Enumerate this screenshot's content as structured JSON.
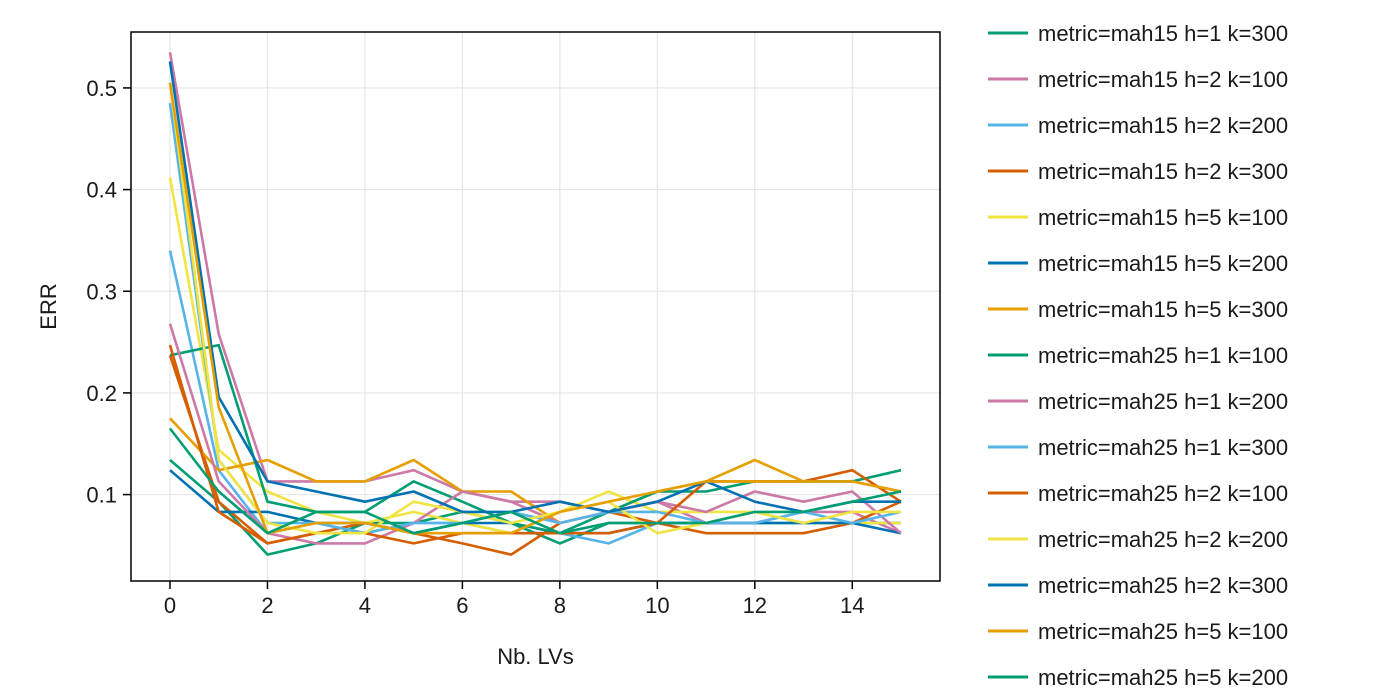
{
  "chart_data": {
    "type": "line",
    "title": "",
    "xlabel": "Nb. LVs",
    "ylabel": "ERR",
    "xlim": [
      -0.8,
      15.8
    ],
    "ylim": [
      0.015,
      0.555
    ],
    "xticks": [
      0,
      2,
      4,
      6,
      8,
      10,
      12,
      14
    ],
    "yticks": [
      0.1,
      0.2,
      0.3,
      0.4,
      0.5
    ],
    "xtick_labels": [
      "0",
      "2",
      "4",
      "6",
      "8",
      "10",
      "12",
      "14"
    ],
    "ytick_labels": [
      "0.1",
      "0.2",
      "0.3",
      "0.4",
      "0.5"
    ],
    "grid": true,
    "legend_position": "right",
    "x": [
      0,
      1,
      2,
      3,
      4,
      5,
      6,
      7,
      8,
      9,
      10,
      11,
      12,
      13,
      14,
      15
    ],
    "series": [
      {
        "name": "metric=mah15 h=1 k=300",
        "color": "#009e73",
        "values": [
          0.134,
          0.093,
          0.041,
          0.052,
          0.072,
          0.072,
          0.083,
          0.072,
          0.052,
          0.072,
          0.072,
          0.072,
          0.072,
          0.072,
          0.072,
          0.072
        ]
      },
      {
        "name": "metric=mah15 h=2 k=100",
        "color": "#cc79a7",
        "values": [
          0.535,
          0.258,
          0.113,
          0.113,
          0.113,
          0.124,
          0.103,
          0.093,
          0.093,
          0.083,
          0.093,
          0.072,
          0.072,
          0.083,
          0.083,
          0.062
        ]
      },
      {
        "name": "metric=mah15 h=2 k=200",
        "color": "#56b4e9",
        "values": [
          0.34,
          0.124,
          0.062,
          0.072,
          0.062,
          0.072,
          0.072,
          0.062,
          0.062,
          0.052,
          0.072,
          0.072,
          0.083,
          0.072,
          0.072,
          0.072
        ]
      },
      {
        "name": "metric=mah15 h=2 k=300",
        "color": "#d55e00",
        "values": [
          0.237,
          0.093,
          0.052,
          0.062,
          0.072,
          0.062,
          0.052,
          0.041,
          0.072,
          0.083,
          0.072,
          0.062,
          0.062,
          0.062,
          0.072,
          0.093
        ]
      },
      {
        "name": "metric=mah15 h=5 k=100",
        "color": "#f0e442",
        "values": [
          0.412,
          0.144,
          0.103,
          0.083,
          0.072,
          0.083,
          0.072,
          0.062,
          0.083,
          0.103,
          0.083,
          0.083,
          0.083,
          0.072,
          0.072,
          0.072
        ]
      },
      {
        "name": "metric=mah15 h=5 k=200",
        "color": "#0072b2",
        "values": [
          0.124,
          0.083,
          0.083,
          0.072,
          0.072,
          0.062,
          0.072,
          0.072,
          0.062,
          0.062,
          0.072,
          0.072,
          0.072,
          0.072,
          0.072,
          0.062
        ]
      },
      {
        "name": "metric=mah15 h=5 k=300",
        "color": "#e69f00",
        "values": [
          0.175,
          0.124,
          0.134,
          0.113,
          0.113,
          0.134,
          0.103,
          0.103,
          0.072,
          0.083,
          0.103,
          0.113,
          0.134,
          0.113,
          0.113,
          0.103
        ]
      },
      {
        "name": "metric=mah25 h=1 k=100",
        "color": "#009e73",
        "values": [
          0.237,
          0.247,
          0.093,
          0.083,
          0.083,
          0.113,
          0.093,
          0.072,
          0.062,
          0.083,
          0.103,
          0.103,
          0.113,
          0.113,
          0.113,
          0.124
        ]
      },
      {
        "name": "metric=mah25 h=1 k=200",
        "color": "#cc79a7",
        "values": [
          0.268,
          0.113,
          0.062,
          0.052,
          0.052,
          0.072,
          0.103,
          0.093,
          0.072,
          0.083,
          0.093,
          0.083,
          0.103,
          0.093,
          0.103,
          0.062
        ]
      },
      {
        "name": "metric=mah25 h=1 k=300",
        "color": "#56b4e9",
        "values": [
          0.485,
          0.134,
          0.072,
          0.072,
          0.062,
          0.072,
          0.072,
          0.083,
          0.072,
          0.083,
          0.083,
          0.072,
          0.072,
          0.083,
          0.072,
          0.083
        ]
      },
      {
        "name": "metric=mah25 h=2 k=100",
        "color": "#d55e00",
        "values": [
          0.247,
          0.083,
          0.052,
          0.062,
          0.062,
          0.052,
          0.062,
          0.062,
          0.062,
          0.062,
          0.072,
          0.113,
          0.113,
          0.113,
          0.124,
          0.093
        ]
      },
      {
        "name": "metric=mah25 h=2 k=200",
        "color": "#f0e442",
        "values": [
          0.505,
          0.134,
          0.072,
          0.062,
          0.062,
          0.093,
          0.083,
          0.072,
          0.083,
          0.093,
          0.062,
          0.072,
          0.083,
          0.072,
          0.083,
          0.083
        ]
      },
      {
        "name": "metric=mah25 h=2 k=300",
        "color": "#0072b2",
        "values": [
          0.526,
          0.196,
          0.113,
          0.103,
          0.093,
          0.103,
          0.083,
          0.083,
          0.093,
          0.083,
          0.093,
          0.113,
          0.093,
          0.083,
          0.093,
          0.093
        ]
      },
      {
        "name": "metric=mah25 h=5 k=100",
        "color": "#e69f00",
        "values": [
          0.505,
          0.186,
          0.062,
          0.072,
          0.072,
          0.062,
          0.062,
          0.062,
          0.083,
          0.093,
          0.103,
          0.113,
          0.113,
          0.113,
          0.113,
          0.103
        ]
      },
      {
        "name": "metric=mah25 h=5 k=200",
        "color": "#009e73",
        "values": [
          0.165,
          0.103,
          0.062,
          0.083,
          0.083,
          0.062,
          0.072,
          0.083,
          0.062,
          0.072,
          0.072,
          0.072,
          0.083,
          0.083,
          0.093,
          0.103
        ]
      }
    ]
  }
}
